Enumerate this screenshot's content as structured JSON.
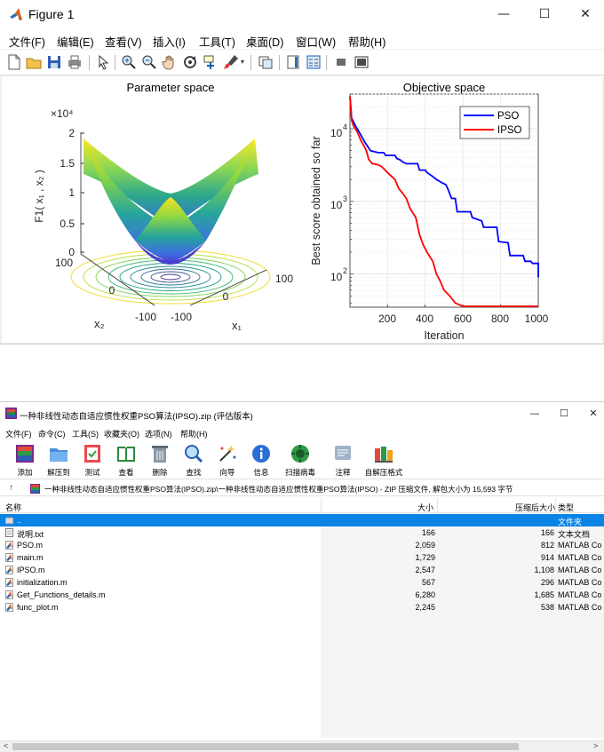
{
  "figure": {
    "title": "Figure 1",
    "window_controls": {
      "minimize": "—",
      "maximize": "☐",
      "close": "✕"
    },
    "menu": [
      "文件(F)",
      "编辑(E)",
      "查看(V)",
      "插入(I)",
      "工具(T)",
      "桌面(D)",
      "窗口(W)",
      "帮助(H)"
    ],
    "toolbar_icons": [
      "new-figure-icon",
      "open-file-icon",
      "save-icon",
      "print-icon",
      "pointer-icon",
      "zoom-in-icon",
      "zoom-out-icon",
      "pan-icon",
      "rotate-3d-icon",
      "data-cursor-icon",
      "brush-icon",
      "link-plot-icon",
      "colorbar-icon",
      "legend-icon",
      "hide-plot-tools-icon",
      "show-plot-tools-icon"
    ]
  },
  "plots": {
    "left": {
      "title": "Parameter space",
      "zlabel": "F1( x₁ , x₂ )",
      "zexp": "×10⁴",
      "zticks": [
        "0",
        "0.5",
        "1",
        "1.5",
        "2"
      ],
      "x2label": "x₂",
      "x1label": "x₁",
      "x2ticks": [
        "100",
        "0",
        "-100"
      ],
      "x1ticks": [
        "-100",
        "0",
        "100"
      ]
    },
    "right": {
      "title": "Objective space",
      "ylabel": "Best score obtained so far",
      "xlabel": "Iteration",
      "xticks": [
        "200",
        "400",
        "600",
        "800",
        "1000"
      ],
      "yticks": [
        "10",
        "10",
        "10"
      ],
      "yexps": [
        "2",
        "3",
        "4"
      ],
      "legend": [
        "PSO",
        "IPSO"
      ]
    }
  },
  "chart_data": {
    "type": "line",
    "title": "Objective space",
    "xlabel": "Iteration",
    "ylabel": "Best score obtained so far",
    "yscale": "log",
    "xlim": [
      1,
      1000
    ],
    "ylim": [
      35,
      30000
    ],
    "legend_placement": "top-right",
    "grid": true,
    "series": [
      {
        "name": "PSO",
        "color": "#0000ff",
        "points": [
          [
            1,
            28000
          ],
          [
            10,
            14000
          ],
          [
            30,
            11000
          ],
          [
            50,
            9000
          ],
          [
            80,
            6500
          ],
          [
            110,
            5000
          ],
          [
            150,
            4700
          ],
          [
            180,
            4700
          ],
          [
            190,
            4300
          ],
          [
            240,
            4300
          ],
          [
            250,
            3900
          ],
          [
            270,
            3700
          ],
          [
            280,
            3500
          ],
          [
            300,
            3300
          ],
          [
            360,
            3300
          ],
          [
            370,
            2700
          ],
          [
            400,
            2700
          ],
          [
            410,
            2500
          ],
          [
            440,
            2200
          ],
          [
            460,
            2000
          ],
          [
            490,
            1800
          ],
          [
            510,
            1700
          ],
          [
            520,
            1500
          ],
          [
            540,
            1100
          ],
          [
            560,
            1100
          ],
          [
            570,
            720
          ],
          [
            640,
            720
          ],
          [
            650,
            600
          ],
          [
            700,
            540
          ],
          [
            710,
            440
          ],
          [
            780,
            440
          ],
          [
            790,
            280
          ],
          [
            840,
            270
          ],
          [
            850,
            180
          ],
          [
            920,
            180
          ],
          [
            930,
            150
          ],
          [
            960,
            150
          ],
          [
            970,
            140
          ],
          [
            1000,
            140
          ],
          [
            1000,
            90
          ]
        ]
      },
      {
        "name": "IPSO",
        "color": "#ff0000",
        "points": [
          [
            1,
            28000
          ],
          [
            10,
            13000
          ],
          [
            20,
            11000
          ],
          [
            40,
            9000
          ],
          [
            60,
            6800
          ],
          [
            80,
            5500
          ],
          [
            90,
            4800
          ],
          [
            100,
            3800
          ],
          [
            120,
            3300
          ],
          [
            150,
            3200
          ],
          [
            170,
            3000
          ],
          [
            200,
            2500
          ],
          [
            240,
            2000
          ],
          [
            260,
            1500
          ],
          [
            280,
            1300
          ],
          [
            300,
            1100
          ],
          [
            320,
            800
          ],
          [
            350,
            600
          ],
          [
            370,
            350
          ],
          [
            390,
            250
          ],
          [
            410,
            200
          ],
          [
            440,
            150
          ],
          [
            460,
            100
          ],
          [
            480,
            80
          ],
          [
            500,
            60
          ],
          [
            530,
            50
          ],
          [
            560,
            40
          ],
          [
            600,
            36
          ],
          [
            800,
            36
          ],
          [
            1000,
            36
          ]
        ]
      }
    ]
  },
  "rar": {
    "title": "一种非线性动态自适应惯性权重PSO算法(IPSO).zip (评估版本)",
    "window_controls": {
      "minimize": "—",
      "maximize": "☐",
      "close": "✕"
    },
    "menu": [
      "文件(F)",
      "命令(C)",
      "工具(S)",
      "收藏夹(O)",
      "选项(N)",
      "帮助(H)"
    ],
    "toolbar": [
      {
        "label": "添加",
        "icon": "add-archive-icon"
      },
      {
        "label": "解压到",
        "icon": "extract-to-icon"
      },
      {
        "label": "测试",
        "icon": "test-icon"
      },
      {
        "label": "查看",
        "icon": "view-icon"
      },
      {
        "label": "删除",
        "icon": "delete-icon"
      },
      {
        "label": "查找",
        "icon": "find-icon"
      },
      {
        "label": "向导",
        "icon": "wizard-icon"
      },
      {
        "label": "信息",
        "icon": "info-icon"
      },
      {
        "label": "扫描病毒",
        "icon": "scan-virus-icon"
      },
      {
        "label": "注释",
        "icon": "comment-icon"
      },
      {
        "label": "自解压格式",
        "icon": "sfx-icon"
      }
    ],
    "path": "一种非线性动态自适应惯性权重PSO算法(IPSO).zip\\一种非线性动态自适应惯性权重PSO算法(IPSO) - ZIP 压缩文件, 解包大小为 15,593 字节",
    "columns": {
      "name": "名称",
      "size": "大小",
      "packed": "压缩后大小",
      "type": "类型"
    },
    "rows": [
      {
        "name": "..",
        "size": "",
        "packed": "",
        "type": "文件夹",
        "icon": "folder-up-icon"
      },
      {
        "name": "说明.txt",
        "size": "166",
        "packed": "166",
        "type": "文本文档",
        "icon": "text-file-icon"
      },
      {
        "name": "PSO.m",
        "size": "2,059",
        "packed": "812",
        "type": "MATLAB Co",
        "icon": "matlab-file-icon"
      },
      {
        "name": "main.m",
        "size": "1,729",
        "packed": "914",
        "type": "MATLAB Co",
        "icon": "matlab-file-icon"
      },
      {
        "name": "IPSO.m",
        "size": "2,547",
        "packed": "1,108",
        "type": "MATLAB Co",
        "icon": "matlab-file-icon"
      },
      {
        "name": "initialization.m",
        "size": "567",
        "packed": "296",
        "type": "MATLAB Co",
        "icon": "matlab-file-icon"
      },
      {
        "name": "Get_Functions_details.m",
        "size": "6,280",
        "packed": "1,685",
        "type": "MATLAB Co",
        "icon": "matlab-file-icon"
      },
      {
        "name": "func_plot.m",
        "size": "2,245",
        "packed": "538",
        "type": "MATLAB Co",
        "icon": "matlab-file-icon"
      }
    ],
    "scroll": {
      "left": "<",
      "right": ">"
    }
  }
}
